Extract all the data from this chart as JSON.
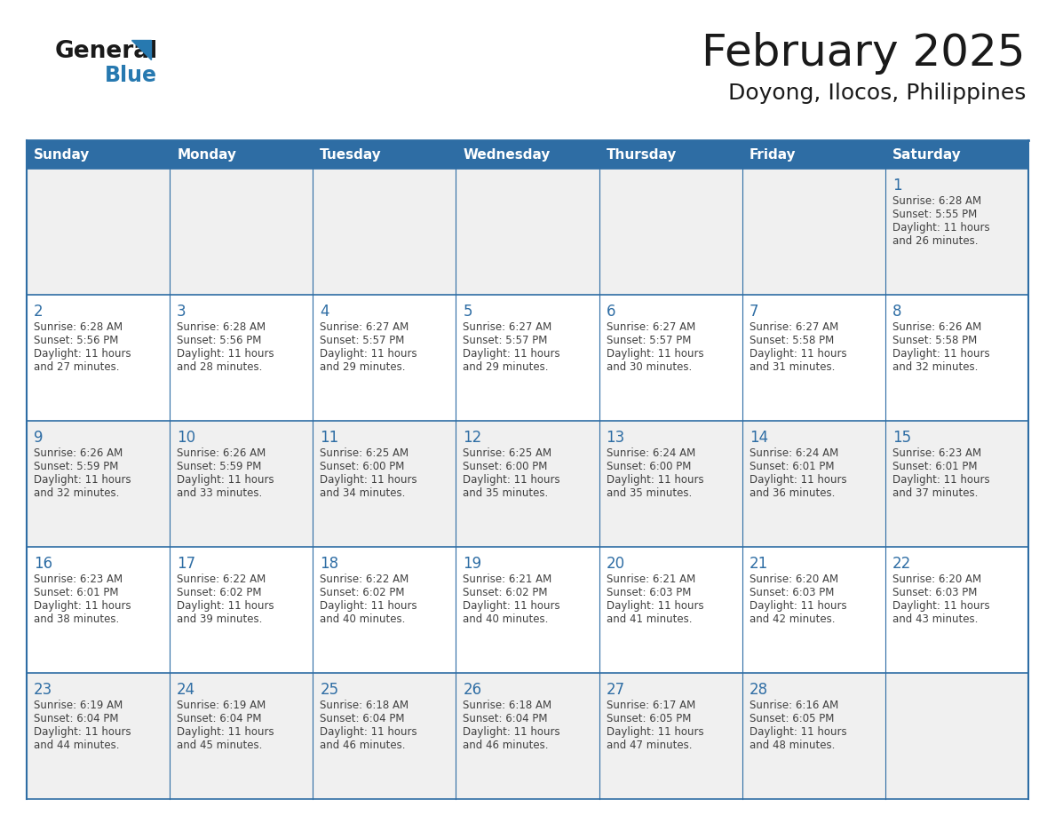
{
  "title": "February 2025",
  "subtitle": "Doyong, Ilocos, Philippines",
  "header_bg": "#2E6DA4",
  "header_text": "#FFFFFF",
  "cell_bg_row0": "#F0F0F0",
  "cell_bg_normal": "#FFFFFF",
  "cell_bg_last": "#F0F0F0",
  "day_headers": [
    "Sunday",
    "Monday",
    "Tuesday",
    "Wednesday",
    "Thursday",
    "Friday",
    "Saturday"
  ],
  "line_color": "#2E6DA4",
  "day_num_color": "#2E6DA4",
  "text_color": "#404040",
  "logo_general_color": "#1a1a1a",
  "logo_blue_color": "#2779B0",
  "weeks": [
    [
      {
        "day": null,
        "sunrise": null,
        "sunset": null,
        "daylight": null
      },
      {
        "day": null,
        "sunrise": null,
        "sunset": null,
        "daylight": null
      },
      {
        "day": null,
        "sunrise": null,
        "sunset": null,
        "daylight": null
      },
      {
        "day": null,
        "sunrise": null,
        "sunset": null,
        "daylight": null
      },
      {
        "day": null,
        "sunrise": null,
        "sunset": null,
        "daylight": null
      },
      {
        "day": null,
        "sunrise": null,
        "sunset": null,
        "daylight": null
      },
      {
        "day": 1,
        "sunrise": "6:28 AM",
        "sunset": "5:55 PM",
        "daylight": "11 hours and 26 minutes."
      }
    ],
    [
      {
        "day": 2,
        "sunrise": "6:28 AM",
        "sunset": "5:56 PM",
        "daylight": "11 hours and 27 minutes."
      },
      {
        "day": 3,
        "sunrise": "6:28 AM",
        "sunset": "5:56 PM",
        "daylight": "11 hours and 28 minutes."
      },
      {
        "day": 4,
        "sunrise": "6:27 AM",
        "sunset": "5:57 PM",
        "daylight": "11 hours and 29 minutes."
      },
      {
        "day": 5,
        "sunrise": "6:27 AM",
        "sunset": "5:57 PM",
        "daylight": "11 hours and 29 minutes."
      },
      {
        "day": 6,
        "sunrise": "6:27 AM",
        "sunset": "5:57 PM",
        "daylight": "11 hours and 30 minutes."
      },
      {
        "day": 7,
        "sunrise": "6:27 AM",
        "sunset": "5:58 PM",
        "daylight": "11 hours and 31 minutes."
      },
      {
        "day": 8,
        "sunrise": "6:26 AM",
        "sunset": "5:58 PM",
        "daylight": "11 hours and 32 minutes."
      }
    ],
    [
      {
        "day": 9,
        "sunrise": "6:26 AM",
        "sunset": "5:59 PM",
        "daylight": "11 hours and 32 minutes."
      },
      {
        "day": 10,
        "sunrise": "6:26 AM",
        "sunset": "5:59 PM",
        "daylight": "11 hours and 33 minutes."
      },
      {
        "day": 11,
        "sunrise": "6:25 AM",
        "sunset": "6:00 PM",
        "daylight": "11 hours and 34 minutes."
      },
      {
        "day": 12,
        "sunrise": "6:25 AM",
        "sunset": "6:00 PM",
        "daylight": "11 hours and 35 minutes."
      },
      {
        "day": 13,
        "sunrise": "6:24 AM",
        "sunset": "6:00 PM",
        "daylight": "11 hours and 35 minutes."
      },
      {
        "day": 14,
        "sunrise": "6:24 AM",
        "sunset": "6:01 PM",
        "daylight": "11 hours and 36 minutes."
      },
      {
        "day": 15,
        "sunrise": "6:23 AM",
        "sunset": "6:01 PM",
        "daylight": "11 hours and 37 minutes."
      }
    ],
    [
      {
        "day": 16,
        "sunrise": "6:23 AM",
        "sunset": "6:01 PM",
        "daylight": "11 hours and 38 minutes."
      },
      {
        "day": 17,
        "sunrise": "6:22 AM",
        "sunset": "6:02 PM",
        "daylight": "11 hours and 39 minutes."
      },
      {
        "day": 18,
        "sunrise": "6:22 AM",
        "sunset": "6:02 PM",
        "daylight": "11 hours and 40 minutes."
      },
      {
        "day": 19,
        "sunrise": "6:21 AM",
        "sunset": "6:02 PM",
        "daylight": "11 hours and 40 minutes."
      },
      {
        "day": 20,
        "sunrise": "6:21 AM",
        "sunset": "6:03 PM",
        "daylight": "11 hours and 41 minutes."
      },
      {
        "day": 21,
        "sunrise": "6:20 AM",
        "sunset": "6:03 PM",
        "daylight": "11 hours and 42 minutes."
      },
      {
        "day": 22,
        "sunrise": "6:20 AM",
        "sunset": "6:03 PM",
        "daylight": "11 hours and 43 minutes."
      }
    ],
    [
      {
        "day": 23,
        "sunrise": "6:19 AM",
        "sunset": "6:04 PM",
        "daylight": "11 hours and 44 minutes."
      },
      {
        "day": 24,
        "sunrise": "6:19 AM",
        "sunset": "6:04 PM",
        "daylight": "11 hours and 45 minutes."
      },
      {
        "day": 25,
        "sunrise": "6:18 AM",
        "sunset": "6:04 PM",
        "daylight": "11 hours and 46 minutes."
      },
      {
        "day": 26,
        "sunrise": "6:18 AM",
        "sunset": "6:04 PM",
        "daylight": "11 hours and 46 minutes."
      },
      {
        "day": 27,
        "sunrise": "6:17 AM",
        "sunset": "6:05 PM",
        "daylight": "11 hours and 47 minutes."
      },
      {
        "day": 28,
        "sunrise": "6:16 AM",
        "sunset": "6:05 PM",
        "daylight": "11 hours and 48 minutes."
      },
      {
        "day": null,
        "sunrise": null,
        "sunset": null,
        "daylight": null
      }
    ]
  ]
}
